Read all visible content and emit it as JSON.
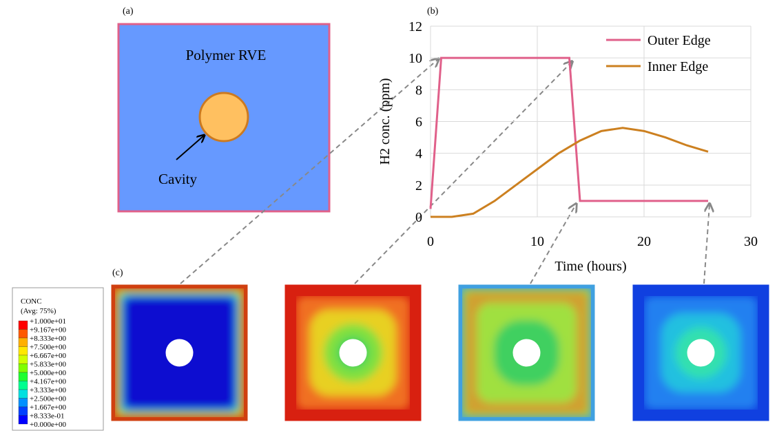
{
  "panel_labels": [
    "(a)",
    "(b)",
    "(c)"
  ],
  "rve": {
    "title": "Polymer RVE",
    "cavity_label": "Cavity"
  },
  "chart_data": {
    "type": "line",
    "x_label": "Time (hours)",
    "y_label": "H2 conc. (ppm)",
    "xlim": [
      0,
      30
    ],
    "xticks": [
      0,
      10,
      20,
      30
    ],
    "ylim": [
      0,
      12
    ],
    "yticks": [
      0,
      2,
      4,
      6,
      8,
      10,
      12
    ],
    "grid": true,
    "legend": "upper right",
    "series": [
      {
        "name": "Outer Edge",
        "color": "#e0608a",
        "x": [
          0,
          1,
          13,
          14,
          26
        ],
        "values": [
          0.5,
          10,
          10,
          1,
          1
        ]
      },
      {
        "name": "Inner Edge",
        "color": "#cc8020",
        "x": [
          0,
          2,
          4,
          6,
          8,
          10,
          12,
          14,
          16,
          18,
          20,
          22,
          24,
          26
        ],
        "values": [
          0,
          0,
          0.2,
          1,
          2,
          3,
          4,
          4.8,
          5.4,
          5.6,
          5.4,
          5,
          4.5,
          4.1
        ]
      }
    ]
  },
  "colorbar": {
    "title": "CONC",
    "subtitle": "(Avg: 75%)",
    "labels": [
      "+1.000e+01",
      "+9.167e+00",
      "+8.333e+00",
      "+7.500e+00",
      "+6.667e+00",
      "+5.833e+00",
      "+5.000e+00",
      "+4.167e+00",
      "+3.333e+00",
      "+2.500e+00",
      "+1.667e+00",
      "+8.333e-01",
      "+0.000e+00"
    ],
    "colors": [
      "#ff0000",
      "#ff5a00",
      "#ffb000",
      "#ffe800",
      "#d0ff00",
      "#80ff00",
      "#20ff30",
      "#00ff90",
      "#00e0e0",
      "#0090ff",
      "#0040ff",
      "#0000ff"
    ]
  }
}
